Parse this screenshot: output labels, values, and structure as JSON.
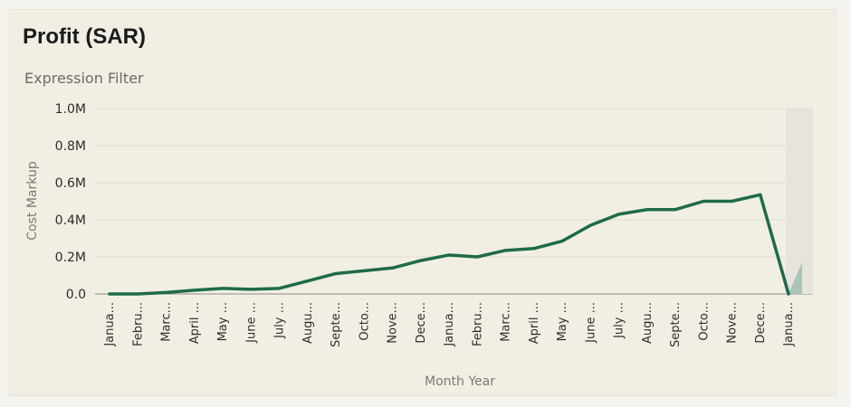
{
  "card": {
    "title": "Profit (SAR)",
    "subtitle": "Expression Filter"
  },
  "chart_data": {
    "type": "line",
    "xlabel": "Month Year",
    "ylabel": "Cost Markup",
    "ylim": [
      0,
      1000000
    ],
    "y_ticks": [
      0,
      200000,
      400000,
      600000,
      800000,
      1000000
    ],
    "y_tick_labels": [
      "0.0",
      "0.2M",
      "0.4M",
      "0.6M",
      "0.8M",
      "1.0M"
    ],
    "grid": true,
    "line_color": "#1f6b48",
    "forecast_color": "#9fbeb0",
    "forecast_band_color": "#e6e4dc",
    "categories": [
      "Janua...",
      "Febru...",
      "Marc...",
      "April ...",
      "May ...",
      "June ...",
      "July ...",
      "Augu...",
      "Septe...",
      "Octo...",
      "Nove...",
      "Dece...",
      "Janua...",
      "Febru...",
      "Marc...",
      "April ...",
      "May ...",
      "June ...",
      "July ...",
      "Augu...",
      "Septe...",
      "Octo...",
      "Nove...",
      "Dece...",
      "Janua..."
    ],
    "series": [
      {
        "values": [
          0,
          0,
          8000,
          20000,
          30000,
          25000,
          30000,
          70000,
          110000,
          125000,
          140000,
          180000,
          210000,
          200000,
          235000,
          245000,
          285000,
          370000,
          430000,
          455000,
          455000,
          500000,
          500000,
          535000,
          0
        ]
      }
    ],
    "forecast": {
      "start_index": 24,
      "end_value": 170000
    }
  }
}
